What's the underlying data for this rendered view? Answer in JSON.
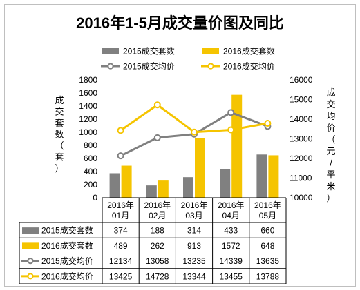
{
  "chart_data": {
    "type": "bar",
    "title": "2016年1-5月成交量价图及同比",
    "categories": [
      "2016年01月",
      "2016年02月",
      "2016年03月",
      "2016年04月",
      "2016年05月"
    ],
    "series": [
      {
        "name": "2015成交套数",
        "kind": "bar",
        "axis": "left",
        "color": "#808080",
        "values": [
          374,
          188,
          314,
          433,
          660
        ]
      },
      {
        "name": "2016成交套数",
        "kind": "bar",
        "axis": "left",
        "color": "#f5c400",
        "values": [
          489,
          262,
          913,
          1572,
          648
        ]
      },
      {
        "name": "2015成交均价",
        "kind": "line",
        "axis": "right",
        "color": "#808080",
        "values": [
          12134,
          13058,
          13235,
          14339,
          13635
        ]
      },
      {
        "name": "2016成交均价",
        "kind": "line",
        "axis": "right",
        "color": "#f5c400",
        "values": [
          13425,
          14728,
          13344,
          13455,
          13788
        ]
      }
    ],
    "left_axis": {
      "label": "成交套数（套）",
      "min": 0,
      "max": 1800,
      "ticks": [
        0,
        200,
        400,
        600,
        800,
        1000,
        1200,
        1400,
        1600,
        1800
      ]
    },
    "right_axis": {
      "label": "成交均价（元/平米）",
      "min": 10000,
      "max": 16000,
      "ticks": [
        10000,
        11000,
        12000,
        13000,
        14000,
        15000,
        16000
      ]
    },
    "grid": false,
    "legend_position": "top",
    "data_table": true
  }
}
